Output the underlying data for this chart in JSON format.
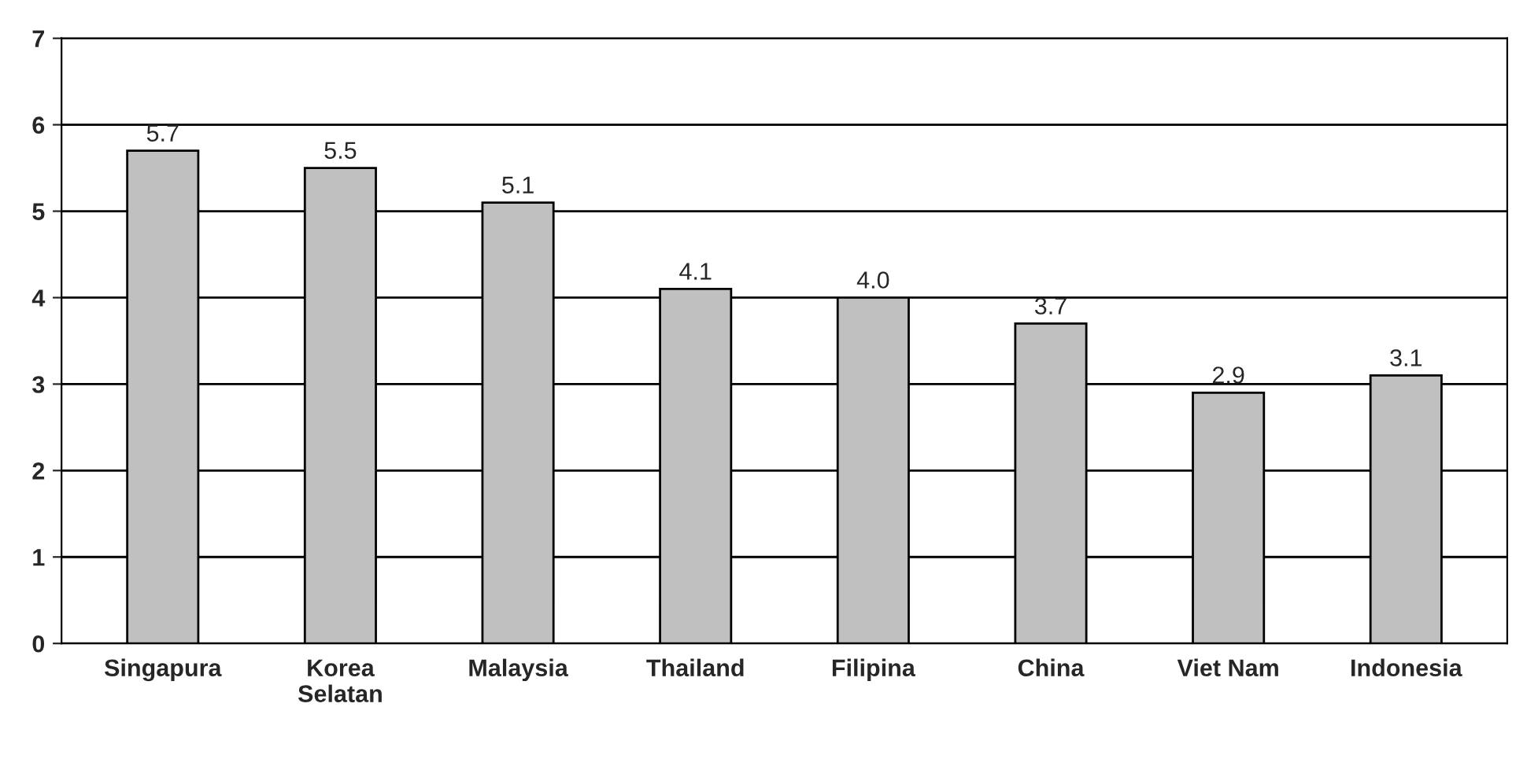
{
  "chart_data": {
    "type": "bar",
    "categories": [
      "Singapura",
      "Korea\nSelatan",
      "Malaysia",
      "Thailand",
      "Filipina",
      "China",
      "Viet Nam",
      "Indonesia"
    ],
    "values": [
      5.7,
      5.5,
      5.1,
      4.1,
      4.0,
      3.7,
      2.9,
      3.1
    ],
    "color": "#c0c0c0",
    "ylim": [
      0,
      7
    ],
    "yticks": [
      0,
      1,
      2,
      3,
      4,
      5,
      6,
      7
    ],
    "value_labels": [
      "5.7",
      "5.5",
      "5.1",
      "4.1",
      "4.0",
      "3.7",
      "2.9",
      "3.1"
    ],
    "grid": "y"
  }
}
